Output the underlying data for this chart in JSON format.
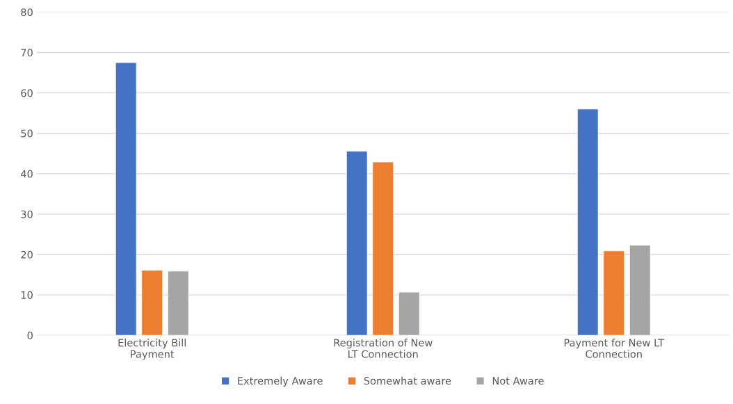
{
  "chart_data": {
    "type": "bar",
    "categories": [
      "Electricity Bill\nPayment",
      "Registration of New\nLT Connection",
      "Payment for New LT\nConnection"
    ],
    "series": [
      {
        "name": "Extremely Aware",
        "color": "#4472c4",
        "values": [
          67.5,
          45.6,
          56.0
        ]
      },
      {
        "name": "Somewhat aware",
        "color": "#ed7d31",
        "values": [
          16.1,
          42.9,
          20.9
        ]
      },
      {
        "name": "Not Aware",
        "color": "#a5a5a5",
        "values": [
          15.9,
          10.7,
          22.3
        ]
      }
    ],
    "ylim": [
      0,
      80
    ],
    "yticks": [
      0,
      10,
      20,
      30,
      40,
      50,
      60,
      70,
      80
    ],
    "grid": "y",
    "legend": "bottom"
  }
}
